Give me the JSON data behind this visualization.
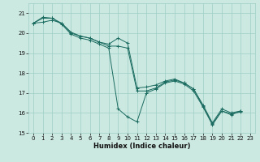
{
  "xlabel": "Humidex (Indice chaleur)",
  "xlim": [
    -0.5,
    23.5
  ],
  "ylim": [
    15,
    21.5
  ],
  "yticks": [
    15,
    16,
    17,
    18,
    19,
    20,
    21
  ],
  "xticks": [
    0,
    1,
    2,
    3,
    4,
    5,
    6,
    7,
    8,
    9,
    10,
    11,
    12,
    13,
    14,
    15,
    16,
    17,
    18,
    19,
    20,
    21,
    22,
    23
  ],
  "bg_color": "#cce9e1",
  "grid_color": "#9ecec5",
  "line_color": "#1a6b60",
  "lines": [
    {
      "x": [
        0,
        1,
        2,
        3,
        4,
        5,
        6,
        7,
        8,
        9,
        10,
        11,
        12,
        13,
        14,
        15,
        16,
        17,
        18,
        19,
        20,
        21,
        22
      ],
      "y": [
        20.5,
        20.8,
        20.75,
        20.45,
        19.95,
        19.75,
        19.65,
        19.45,
        19.25,
        16.2,
        15.8,
        15.55,
        17.0,
        17.2,
        17.5,
        17.6,
        17.45,
        17.1,
        16.3,
        15.4,
        16.1,
        15.9,
        16.1
      ]
    },
    {
      "x": [
        0,
        1,
        2,
        3,
        4,
        5,
        6,
        7,
        8,
        9,
        10,
        11,
        12,
        13,
        14,
        15,
        16,
        17,
        18,
        19,
        20,
        21,
        22
      ],
      "y": [
        20.5,
        20.75,
        20.75,
        20.5,
        20.05,
        19.85,
        19.75,
        19.55,
        19.45,
        19.75,
        19.5,
        17.25,
        17.3,
        17.4,
        17.6,
        17.7,
        17.5,
        17.2,
        16.4,
        15.5,
        16.2,
        16.0,
        16.1
      ]
    },
    {
      "x": [
        0,
        1,
        2,
        3,
        4,
        5,
        6,
        7,
        8,
        9,
        10,
        11,
        12,
        13,
        14,
        15,
        16,
        17,
        18,
        19,
        20,
        21,
        22
      ],
      "y": [
        20.5,
        20.55,
        20.65,
        20.5,
        20.0,
        19.85,
        19.75,
        19.55,
        19.35,
        19.35,
        19.25,
        17.1,
        17.1,
        17.25,
        17.55,
        17.65,
        17.5,
        17.2,
        16.35,
        15.45,
        16.1,
        15.95,
        16.05
      ]
    }
  ]
}
